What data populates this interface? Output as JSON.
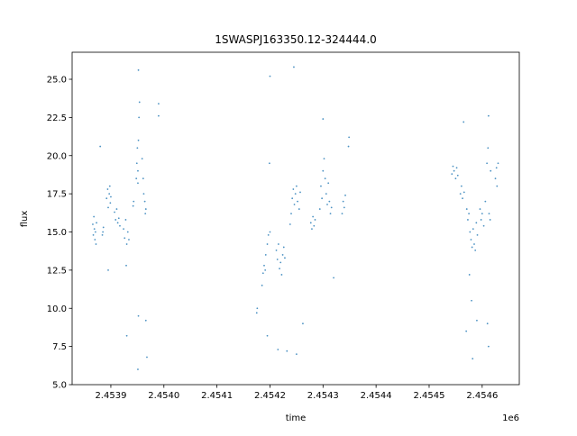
{
  "chart_data": {
    "type": "scatter",
    "title": "1SWASPJ163350.12-324444.0",
    "x_label": "time",
    "y_label": "flux",
    "x_offset_label": "1e6",
    "color": "#1f77b4",
    "xlim": [
      2453827,
      2454670
    ],
    "ylim": [
      5,
      26.77
    ],
    "xticks": [
      {
        "value": 2453900,
        "label": "2.4539"
      },
      {
        "value": 2454000,
        "label": "2.4540"
      },
      {
        "value": 2454100,
        "label": "2.4541"
      },
      {
        "value": 2454200,
        "label": "2.4542"
      },
      {
        "value": 2454300,
        "label": "2.4543"
      },
      {
        "value": 2454400,
        "label": "2.4544"
      },
      {
        "value": 2454500,
        "label": "2.4545"
      },
      {
        "value": 2454600,
        "label": "2.4546"
      }
    ],
    "yticks": [
      {
        "value": 5,
        "label": "5.0"
      },
      7.5,
      {
        "value": 10,
        "label": "10.0"
      },
      12.5,
      {
        "value": 15,
        "label": "15.0"
      },
      17.5,
      {
        "value": 20,
        "label": "20.0"
      },
      22.5,
      {
        "value": 25,
        "label": "25.0"
      }
    ],
    "x": [
      2453866,
      2453867,
      2453868,
      2453869,
      2453870,
      2453871,
      2453872,
      2453873,
      2453885,
      2453886,
      2453884,
      2453892,
      2453894,
      2453895,
      2453897,
      2453898,
      2453899,
      2453900,
      2453907,
      2453909,
      2453911,
      2453913,
      2453915,
      2453917,
      2453924,
      2453926,
      2453928,
      2453930,
      2453932,
      2453934,
      2453929,
      2453942,
      2453943,
      2453948,
      2453949,
      2453950,
      2453951,
      2453952,
      2453953,
      2453954,
      2453951,
      2453959,
      2453961,
      2453962,
      2453964,
      2453965,
      2453966,
      2453990,
      2453990,
      2453952,
      2453952,
      2453951,
      2453930,
      2453880,
      2453968,
      2453966,
      2453895,
      2454175,
      2454176,
      2454185,
      2454187,
      2454189,
      2454191,
      2454192,
      2454195,
      2454197,
      2454199,
      2454200,
      2454212,
      2454214,
      2454216,
      2454218,
      2454220,
      2454222,
      2454224,
      2454226,
      2454228,
      2454238,
      2454240,
      2454242,
      2454244,
      2454246,
      2454248,
      2454250,
      2454252,
      2454255,
      2454257,
      2454277,
      2454279,
      2454281,
      2454283,
      2454285,
      2454294,
      2454296,
      2454298,
      2454300,
      2454302,
      2454304,
      2454306,
      2454308,
      2454310,
      2454312,
      2454314,
      2454316,
      2454336,
      2454338,
      2454340,
      2454342,
      2454348,
      2454349,
      2454200,
      2454195,
      2454215,
      2454232,
      2454245,
      2454300,
      2454262,
      2454320,
      2454250,
      2454543,
      2454545,
      2454547,
      2454550,
      2454552,
      2454554,
      2454559,
      2454561,
      2454563,
      2454566,
      2454571,
      2454573,
      2454575,
      2454577,
      2454579,
      2454581,
      2454583,
      2454585,
      2454587,
      2454589,
      2454591,
      2454596,
      2454598,
      2454600,
      2454603,
      2454606,
      2454609,
      2454611,
      2454613,
      2454615,
      2454616,
      2454625,
      2454627,
      2454628,
      2454630,
      2454576,
      2454580,
      2454590,
      2454612,
      2454610,
      2454612,
      2454582,
      2454565,
      2454570
    ],
    "values": [
      15.5,
      14.8,
      16.0,
      15.2,
      14.5,
      15.0,
      14.2,
      15.6,
      15.0,
      15.3,
      14.8,
      17.2,
      17.8,
      16.6,
      17.5,
      18.0,
      16.9,
      17.3,
      16.3,
      15.8,
      16.5,
      15.6,
      15.9,
      15.4,
      15.2,
      14.6,
      15.8,
      14.2,
      15.0,
      14.5,
      12.8,
      16.7,
      17.0,
      18.5,
      19.5,
      20.5,
      19.0,
      21.0,
      22.5,
      23.5,
      18.2,
      19.8,
      18.5,
      17.5,
      17.0,
      16.2,
      16.5,
      22.6,
      23.4,
      25.6,
      9.5,
      6.0,
      8.2,
      20.6,
      6.8,
      9.2,
      12.5,
      9.7,
      10.0,
      11.5,
      12.3,
      12.8,
      12.5,
      13.5,
      14.2,
      14.8,
      19.5,
      15.0,
      13.8,
      13.2,
      14.2,
      12.6,
      13.0,
      12.2,
      13.5,
      14.0,
      13.3,
      15.5,
      16.2,
      17.2,
      17.8,
      16.8,
      17.5,
      18.0,
      17.0,
      16.5,
      17.6,
      15.6,
      15.2,
      16.0,
      15.4,
      15.8,
      16.5,
      18.0,
      17.2,
      19.0,
      19.8,
      18.5,
      17.5,
      16.8,
      18.2,
      17.0,
      16.2,
      16.6,
      16.2,
      17.0,
      16.6,
      17.4,
      20.6,
      21.2,
      25.2,
      8.2,
      7.3,
      7.2,
      25.8,
      22.4,
      9.0,
      12.0,
      7.0,
      18.8,
      19.3,
      19.0,
      18.5,
      19.2,
      18.7,
      17.5,
      18.0,
      17.2,
      17.6,
      16.5,
      15.8,
      16.2,
      15.0,
      14.5,
      14.0,
      15.2,
      14.2,
      13.8,
      15.6,
      14.8,
      16.5,
      15.8,
      16.2,
      15.4,
      17.0,
      19.5,
      20.5,
      16.2,
      15.8,
      19.0,
      18.5,
      19.2,
      18.0,
      19.5,
      12.2,
      10.5,
      9.2,
      22.6,
      9.0,
      7.5,
      6.7,
      22.2,
      8.5
    ]
  }
}
